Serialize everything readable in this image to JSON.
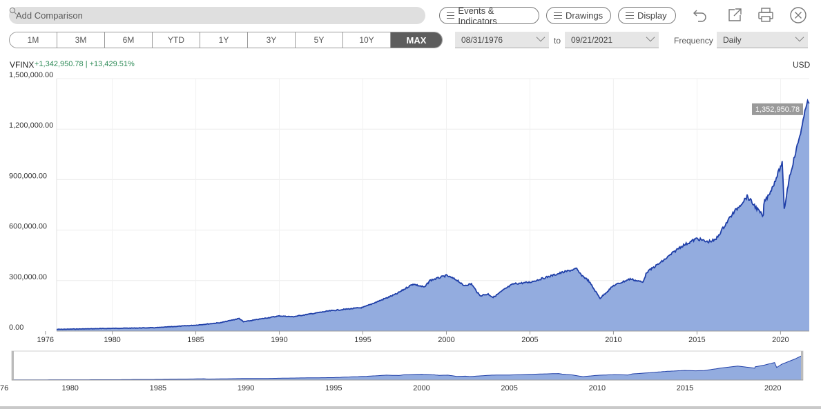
{
  "toolbar": {
    "search_placeholder": "Add Comparison",
    "events_label": "Events & Indicators",
    "drawings_label": "Drawings",
    "display_label": "Display"
  },
  "periods": [
    "1M",
    "3M",
    "6M",
    "YTD",
    "1Y",
    "3Y",
    "5Y",
    "10Y",
    "MAX"
  ],
  "active_period": "MAX",
  "date_range": {
    "from": "08/31/1976",
    "to_label": "to",
    "to": "09/21/2021"
  },
  "frequency": {
    "label": "Frequency",
    "value": "Daily"
  },
  "ticker": {
    "symbol": "VFINX",
    "change": "+1,342,950.78 | +13,429.51%",
    "currency": "USD"
  },
  "colors": {
    "line": "#1f3fa8",
    "area": "#93acdf",
    "change": "#2e8b57",
    "active_period": "#5d5d5d"
  },
  "chart_data": {
    "type": "area",
    "series": [
      {
        "name": "VFINX",
        "x": [
          1976.67,
          1980,
          1982.6,
          1985,
          1986.5,
          1987.6,
          1987.85,
          1990,
          1990.8,
          1993,
          1995,
          1996,
          1997,
          1998,
          1998.7,
          1999,
          2000,
          2000.7,
          2001,
          2001.5,
          2002,
          2002.5,
          2002.8,
          2003.5,
          2004,
          2005,
          2006,
          2007,
          2007.8,
          2008,
          2008.5,
          2009.2,
          2010,
          2011,
          2011.75,
          2012,
          2013,
          2014,
          2015,
          2015.6,
          2016.1,
          2017,
          2018,
          2018.97,
          2019,
          2019.5,
          2020.1,
          2020.22,
          2020.5,
          2021,
          2021.3,
          2021.62,
          2021.72
        ],
        "y": [
          10000,
          16000,
          20000,
          35000,
          50000,
          75000,
          55000,
          90000,
          85000,
          120000,
          140000,
          180000,
          220000,
          280000,
          260000,
          300000,
          330000,
          300000,
          270000,
          280000,
          210000,
          220000,
          200000,
          250000,
          280000,
          290000,
          320000,
          350000,
          370000,
          340000,
          300000,
          195000,
          270000,
          310000,
          290000,
          350000,
          420000,
          500000,
          550000,
          530000,
          540000,
          680000,
          800000,
          680000,
          760000,
          850000,
          1000000,
          720000,
          900000,
          1100000,
          1220000,
          1380000,
          1352950.78
        ]
      }
    ],
    "price_label": "1,352,950.78",
    "y_ticks": [
      "0.00",
      "300,000.00",
      "600,000.00",
      "900,000.00",
      "1,200,000.00",
      "1,500,000.00"
    ],
    "x_ticks": [
      "1976",
      "1980",
      "1985",
      "1990",
      "1995",
      "2000",
      "2005",
      "2010",
      "2015",
      "2020"
    ],
    "ylim": [
      0,
      1500000
    ],
    "xlim": [
      1976.67,
      2021.72
    ],
    "grid": true,
    "navigator": true
  }
}
